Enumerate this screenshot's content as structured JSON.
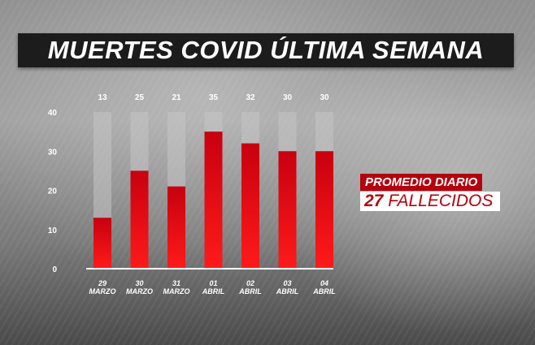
{
  "title": "MUERTES COVID ÚLTIMA SEMANA",
  "average": {
    "label": "PROMEDIO DIARIO",
    "number": "27",
    "unit": "FALLECIDOS"
  },
  "colors": {
    "bar_top": "#c8000f",
    "bar_bottom": "#ff1a1a",
    "track": "#c4c4c4",
    "label_text": "#ffffff",
    "accent": "#b5000e"
  },
  "chart_data": {
    "type": "bar",
    "title": "MUERTES COVID ÚLTIMA SEMANA",
    "xlabel": "",
    "ylabel": "",
    "ylim": [
      0,
      40
    ],
    "yticks": [
      0,
      10,
      20,
      30,
      40
    ],
    "grid": false,
    "categories": [
      [
        "29",
        "MARZO"
      ],
      [
        "30",
        "MARZO"
      ],
      [
        "31",
        "MARZO"
      ],
      [
        "01",
        "ABRIL"
      ],
      [
        "02",
        "ABRIL"
      ],
      [
        "03",
        "ABRIL"
      ],
      [
        "04",
        "ABRIL"
      ]
    ],
    "values": [
      13,
      25,
      21,
      35,
      32,
      30,
      30
    ],
    "data_labels": [
      "13",
      "25",
      "21",
      "35",
      "32",
      "30",
      "30"
    ]
  }
}
